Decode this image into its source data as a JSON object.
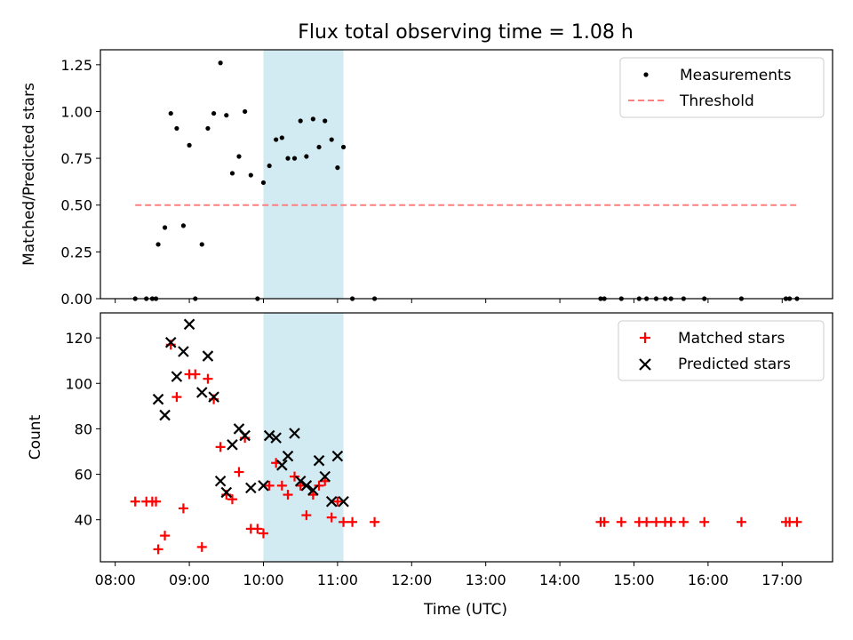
{
  "chart_data": {
    "type": "scatter",
    "title": "Flux total observing time = 1.08 h",
    "xlabel": "Time (UTC)",
    "xlim": [
      7.8,
      17.68
    ],
    "xticks": [
      {
        "v": 8,
        "label": "08:00"
      },
      {
        "v": 9,
        "label": "09:00"
      },
      {
        "v": 10,
        "label": "10:00"
      },
      {
        "v": 11,
        "label": "11:00"
      },
      {
        "v": 12,
        "label": "12:00"
      },
      {
        "v": 13,
        "label": "13:00"
      },
      {
        "v": 14,
        "label": "14:00"
      },
      {
        "v": 15,
        "label": "15:00"
      },
      {
        "v": 16,
        "label": "16:00"
      },
      {
        "v": 17,
        "label": "17:00"
      }
    ],
    "highlight_span": [
      10.0,
      11.08
    ],
    "highlight_color": "#add8e6",
    "top": {
      "ylabel": "Matched/Predicted stars",
      "ylim": [
        0,
        1.33
      ],
      "yticks": [
        "0.00",
        "0.25",
        "0.50",
        "0.75",
        "1.00",
        "1.25"
      ],
      "legend_position": "upper right",
      "measurements": {
        "name": "Measurements",
        "color": "#000000",
        "points": [
          [
            8.27,
            0.0
          ],
          [
            8.42,
            0.0
          ],
          [
            8.5,
            0.0
          ],
          [
            8.55,
            0.0
          ],
          [
            8.58,
            0.29
          ],
          [
            8.67,
            0.38
          ],
          [
            8.75,
            0.99
          ],
          [
            8.83,
            0.91
          ],
          [
            8.92,
            0.39
          ],
          [
            9.0,
            0.82
          ],
          [
            9.08,
            0.0
          ],
          [
            9.17,
            0.29
          ],
          [
            9.25,
            0.91
          ],
          [
            9.33,
            0.99
          ],
          [
            9.42,
            1.26
          ],
          [
            9.5,
            0.98
          ],
          [
            9.58,
            0.67
          ],
          [
            9.67,
            0.76
          ],
          [
            9.75,
            1.0
          ],
          [
            9.83,
            0.66
          ],
          [
            9.92,
            0.0
          ],
          [
            10.0,
            0.62
          ],
          [
            10.08,
            0.71
          ],
          [
            10.17,
            0.85
          ],
          [
            10.25,
            0.86
          ],
          [
            10.33,
            0.75
          ],
          [
            10.42,
            0.75
          ],
          [
            10.5,
            0.95
          ],
          [
            10.58,
            0.76
          ],
          [
            10.67,
            0.96
          ],
          [
            10.75,
            0.81
          ],
          [
            10.83,
            0.95
          ],
          [
            10.92,
            0.85
          ],
          [
            11.0,
            0.7
          ],
          [
            11.08,
            0.81
          ],
          [
            11.2,
            0.0
          ],
          [
            11.5,
            0.0
          ],
          [
            14.55,
            0.0
          ],
          [
            14.6,
            0.0
          ],
          [
            14.83,
            0.0
          ],
          [
            15.07,
            0.0
          ],
          [
            15.17,
            0.0
          ],
          [
            15.3,
            0.0
          ],
          [
            15.42,
            0.0
          ],
          [
            15.5,
            0.0
          ],
          [
            15.67,
            0.0
          ],
          [
            15.95,
            0.0
          ],
          [
            16.45,
            0.0
          ],
          [
            17.05,
            0.0
          ],
          [
            17.1,
            0.0
          ],
          [
            17.2,
            0.0
          ]
        ]
      },
      "threshold": {
        "name": "Threshold",
        "value": 0.5,
        "x_range": [
          8.27,
          17.2
        ],
        "color": "#ff7f7f"
      }
    },
    "bottom": {
      "ylabel": "Count",
      "ylim": [
        21.5,
        131
      ],
      "yticks": [
        "40",
        "60",
        "80",
        "100",
        "120"
      ],
      "legend_position": "upper right",
      "matched": {
        "name": "Matched stars",
        "color": "#ff0000",
        "points": [
          [
            8.27,
            48
          ],
          [
            8.42,
            48
          ],
          [
            8.5,
            48
          ],
          [
            8.55,
            48
          ],
          [
            8.58,
            27
          ],
          [
            8.67,
            33
          ],
          [
            8.75,
            117
          ],
          [
            8.83,
            94
          ],
          [
            8.92,
            45
          ],
          [
            9.0,
            104
          ],
          [
            9.08,
            104
          ],
          [
            9.17,
            28
          ],
          [
            9.25,
            102
          ],
          [
            9.33,
            93
          ],
          [
            9.42,
            72
          ],
          [
            9.5,
            51
          ],
          [
            9.58,
            49
          ],
          [
            9.67,
            61
          ],
          [
            9.75,
            76
          ],
          [
            9.83,
            36
          ],
          [
            9.92,
            36
          ],
          [
            10.0,
            34
          ],
          [
            10.08,
            55
          ],
          [
            10.17,
            65
          ],
          [
            10.25,
            55
          ],
          [
            10.33,
            51
          ],
          [
            10.42,
            59
          ],
          [
            10.5,
            55
          ],
          [
            10.58,
            42
          ],
          [
            10.67,
            51
          ],
          [
            10.75,
            55
          ],
          [
            10.83,
            57
          ],
          [
            10.92,
            41
          ],
          [
            11.0,
            48
          ],
          [
            11.08,
            39
          ],
          [
            11.2,
            39
          ],
          [
            11.5,
            39
          ],
          [
            14.55,
            39
          ],
          [
            14.6,
            39
          ],
          [
            14.83,
            39
          ],
          [
            15.07,
            39
          ],
          [
            15.17,
            39
          ],
          [
            15.3,
            39
          ],
          [
            15.42,
            39
          ],
          [
            15.5,
            39
          ],
          [
            15.67,
            39
          ],
          [
            15.95,
            39
          ],
          [
            16.45,
            39
          ],
          [
            17.05,
            39
          ],
          [
            17.1,
            39
          ],
          [
            17.2,
            39
          ]
        ]
      },
      "predicted": {
        "name": "Predicted stars",
        "color": "#000000",
        "points": [
          [
            8.58,
            93
          ],
          [
            8.67,
            86
          ],
          [
            8.75,
            118
          ],
          [
            8.83,
            103
          ],
          [
            8.92,
            114
          ],
          [
            9.0,
            126
          ],
          [
            9.17,
            96
          ],
          [
            9.25,
            112
          ],
          [
            9.33,
            94
          ],
          [
            9.42,
            57
          ],
          [
            9.5,
            52
          ],
          [
            9.58,
            73
          ],
          [
            9.67,
            80
          ],
          [
            9.75,
            77
          ],
          [
            9.83,
            54
          ],
          [
            10.0,
            55
          ],
          [
            10.08,
            77
          ],
          [
            10.17,
            76
          ],
          [
            10.25,
            64
          ],
          [
            10.33,
            68
          ],
          [
            10.42,
            78
          ],
          [
            10.5,
            57
          ],
          [
            10.58,
            55
          ],
          [
            10.67,
            53
          ],
          [
            10.75,
            66
          ],
          [
            10.83,
            59
          ],
          [
            10.92,
            48
          ],
          [
            11.0,
            68
          ],
          [
            11.08,
            48
          ]
        ]
      }
    }
  }
}
